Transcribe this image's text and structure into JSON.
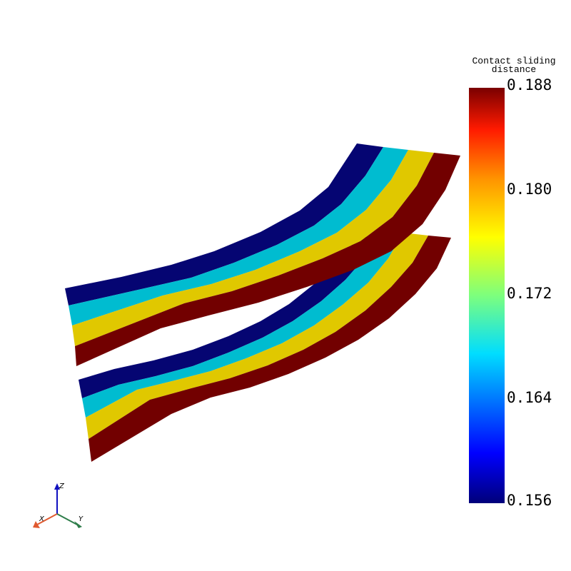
{
  "legend": {
    "title_line1": "Contact sliding",
    "title_line2": "distance",
    "ticks": [
      "0.188",
      "0.180",
      "0.172",
      "0.164",
      "0.156"
    ],
    "min": 0.156,
    "max": 0.188
  },
  "colors": {
    "band_1": "#050572",
    "band_2": "#00bcd0",
    "band_3": "#e0c800",
    "band_4": "#720000"
  },
  "axes_triad": {
    "x_label": "X",
    "y_label": "Y",
    "z_label": "Z"
  }
}
